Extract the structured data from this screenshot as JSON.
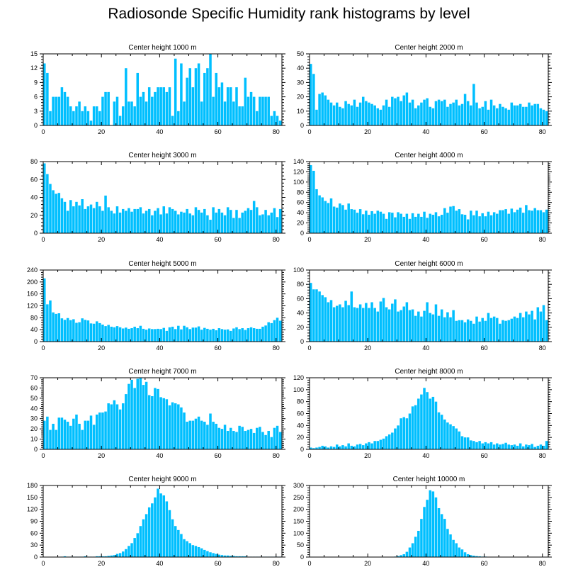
{
  "title": "Radiosonde Specific Humidity rank histograms by level",
  "colors": {
    "bar": "#00bfff",
    "axis": "#000000",
    "background": "#ffffff"
  },
  "chart_data": [
    {
      "type": "bar",
      "title": "Center height 1000 m",
      "xlabel": "",
      "ylabel": "",
      "xlim": [
        0,
        82
      ],
      "ylim": [
        0,
        15
      ],
      "xticks": [
        0,
        20,
        40,
        60,
        80
      ],
      "yticks": [
        0,
        3,
        6,
        9,
        12,
        15
      ],
      "values": [
        13,
        11,
        3,
        6,
        6,
        6,
        8,
        7,
        6,
        4,
        3,
        4,
        5,
        3,
        4,
        3,
        1,
        4,
        4,
        3,
        6,
        7,
        7,
        0,
        5,
        6,
        2,
        4,
        12,
        5,
        5,
        4,
        11,
        6,
        7,
        5,
        8,
        6,
        7,
        8,
        8,
        8,
        7,
        8,
        2,
        14,
        3,
        13,
        5,
        10,
        12,
        8,
        12,
        13,
        5,
        11,
        12,
        15,
        6,
        11,
        8,
        9,
        5,
        8,
        8,
        5,
        8,
        4,
        4,
        10,
        6,
        7,
        6,
        3,
        6,
        6,
        6,
        6,
        2,
        3,
        2,
        1
      ]
    },
    {
      "type": "bar",
      "title": "Center height 2000 m",
      "xlabel": "",
      "ylabel": "",
      "xlim": [
        0,
        82
      ],
      "ylim": [
        0,
        50
      ],
      "xticks": [
        0,
        20,
        40,
        60,
        80
      ],
      "yticks": [
        0,
        10,
        20,
        30,
        40,
        50
      ],
      "values": [
        43,
        36,
        11,
        22,
        23,
        21,
        18,
        16,
        14,
        16,
        13,
        12,
        17,
        15,
        14,
        18,
        13,
        16,
        20,
        17,
        16,
        15,
        14,
        12,
        11,
        14,
        18,
        13,
        20,
        19,
        20,
        17,
        21,
        23,
        16,
        18,
        12,
        14,
        16,
        18,
        19,
        13,
        12,
        17,
        18,
        17,
        18,
        13,
        15,
        16,
        18,
        14,
        15,
        22,
        17,
        14,
        29,
        16,
        12,
        13,
        17,
        11,
        18,
        14,
        12,
        15,
        13,
        12,
        11,
        16,
        14,
        14,
        15,
        13,
        13,
        16,
        14,
        15,
        15,
        12,
        11,
        10
      ]
    },
    {
      "type": "bar",
      "title": "Center height 3000 m",
      "xlabel": "",
      "ylabel": "",
      "xlim": [
        0,
        82
      ],
      "ylim": [
        0,
        80
      ],
      "xticks": [
        0,
        20,
        40,
        60,
        80
      ],
      "yticks": [
        0,
        20,
        40,
        60,
        80
      ],
      "values": [
        78,
        66,
        55,
        48,
        44,
        45,
        39,
        35,
        25,
        37,
        30,
        35,
        31,
        38,
        27,
        30,
        32,
        28,
        35,
        30,
        25,
        42,
        29,
        25,
        22,
        30,
        23,
        27,
        25,
        28,
        24,
        27,
        27,
        29,
        22,
        25,
        27,
        20,
        25,
        28,
        21,
        30,
        22,
        29,
        27,
        25,
        21,
        24,
        23,
        27,
        22,
        20,
        29,
        26,
        23,
        27,
        20,
        15,
        29,
        23,
        27,
        23,
        20,
        29,
        26,
        17,
        26,
        17,
        23,
        25,
        28,
        26,
        36,
        29,
        20,
        21,
        26,
        20,
        23,
        28,
        18,
        27
      ]
    },
    {
      "type": "bar",
      "title": "Center height 4000 m",
      "xlabel": "",
      "ylabel": "",
      "xlim": [
        0,
        82
      ],
      "ylim": [
        0,
        140
      ],
      "xticks": [
        0,
        20,
        40,
        60,
        80
      ],
      "yticks": [
        0,
        20,
        40,
        60,
        80,
        100,
        120,
        140
      ],
      "values": [
        133,
        122,
        86,
        74,
        70,
        63,
        59,
        68,
        52,
        50,
        58,
        55,
        46,
        58,
        47,
        46,
        40,
        47,
        37,
        44,
        36,
        43,
        38,
        44,
        42,
        38,
        28,
        41,
        40,
        31,
        41,
        38,
        32,
        38,
        28,
        39,
        32,
        38,
        32,
        42,
        30,
        38,
        36,
        41,
        33,
        36,
        49,
        40,
        52,
        53,
        44,
        47,
        37,
        36,
        27,
        44,
        35,
        44,
        33,
        39,
        33,
        42,
        35,
        41,
        38,
        45,
        45,
        47,
        38,
        48,
        41,
        46,
        50,
        40,
        55,
        45,
        44,
        49,
        45,
        45,
        41,
        46
      ]
    },
    {
      "type": "bar",
      "title": "Center height 5000 m",
      "xlabel": "",
      "ylabel": "",
      "xlim": [
        0,
        82
      ],
      "ylim": [
        0,
        240
      ],
      "xticks": [
        0,
        20,
        40,
        60,
        80
      ],
      "yticks": [
        0,
        40,
        80,
        120,
        160,
        200,
        240
      ],
      "values": [
        212,
        125,
        138,
        98,
        93,
        95,
        78,
        73,
        79,
        72,
        75,
        63,
        65,
        78,
        73,
        71,
        61,
        60,
        68,
        62,
        57,
        52,
        56,
        50,
        48,
        52,
        48,
        44,
        47,
        43,
        45,
        50,
        45,
        53,
        43,
        40,
        44,
        42,
        42,
        43,
        42,
        46,
        36,
        48,
        50,
        42,
        53,
        41,
        53,
        48,
        42,
        47,
        47,
        51,
        40,
        46,
        43,
        40,
        43,
        38,
        45,
        42,
        40,
        41,
        36,
        44,
        48,
        42,
        45,
        39,
        45,
        48,
        45,
        43,
        43,
        50,
        54,
        65,
        62,
        72,
        80,
        70
      ]
    },
    {
      "type": "bar",
      "title": "Center height 6000 m",
      "xlabel": "",
      "ylabel": "",
      "xlim": [
        0,
        82
      ],
      "ylim": [
        0,
        100
      ],
      "xticks": [
        0,
        20,
        40,
        60,
        80
      ],
      "yticks": [
        0,
        20,
        40,
        60,
        80,
        100
      ],
      "values": [
        82,
        73,
        73,
        70,
        65,
        62,
        55,
        58,
        48,
        50,
        52,
        48,
        57,
        51,
        70,
        48,
        47,
        52,
        47,
        54,
        47,
        55,
        47,
        42,
        56,
        61,
        48,
        45,
        53,
        59,
        42,
        44,
        49,
        55,
        44,
        45,
        36,
        42,
        35,
        43,
        55,
        40,
        38,
        52,
        36,
        45,
        34,
        41,
        34,
        44,
        29,
        30,
        30,
        27,
        31,
        29,
        25,
        35,
        28,
        33,
        29,
        40,
        33,
        35,
        33,
        25,
        30,
        29,
        30,
        32,
        35,
        33,
        40,
        34,
        42,
        38,
        43,
        31,
        48,
        42,
        51,
        30
      ]
    },
    {
      "type": "bar",
      "title": "Center height 7000 m",
      "xlabel": "",
      "ylabel": "",
      "xlim": [
        0,
        82
      ],
      "ylim": [
        0,
        70
      ],
      "xticks": [
        0,
        20,
        40,
        60,
        80
      ],
      "yticks": [
        0,
        10,
        20,
        30,
        40,
        50,
        60,
        70
      ],
      "values": [
        28,
        32,
        19,
        25,
        19,
        31,
        31,
        29,
        27,
        23,
        30,
        34,
        25,
        19,
        28,
        28,
        33,
        24,
        34,
        36,
        36,
        37,
        45,
        44,
        48,
        44,
        39,
        45,
        54,
        64,
        68,
        60,
        69,
        70,
        63,
        66,
        53,
        52,
        60,
        59,
        51,
        50,
        49,
        43,
        46,
        45,
        44,
        41,
        36,
        27,
        28,
        28,
        30,
        32,
        28,
        27,
        24,
        35,
        27,
        25,
        21,
        20,
        24,
        18,
        21,
        18,
        17,
        23,
        22,
        18,
        19,
        20,
        16,
        21,
        22,
        17,
        14,
        18,
        12,
        21,
        23,
        17
      ]
    },
    {
      "type": "bar",
      "title": "Center height 8000 m",
      "xlabel": "",
      "ylabel": "",
      "xlim": [
        0,
        82
      ],
      "ylim": [
        0,
        120
      ],
      "xticks": [
        0,
        20,
        40,
        60,
        80
      ],
      "yticks": [
        0,
        20,
        40,
        60,
        80,
        100,
        120
      ],
      "values": [
        3,
        2,
        3,
        4,
        6,
        5,
        3,
        5,
        4,
        8,
        5,
        7,
        5,
        10,
        6,
        5,
        8,
        9,
        7,
        10,
        12,
        10,
        14,
        14,
        16,
        18,
        22,
        25,
        28,
        35,
        40,
        52,
        54,
        52,
        60,
        72,
        74,
        85,
        92,
        103,
        96,
        85,
        88,
        80,
        62,
        58,
        50,
        45,
        42,
        39,
        35,
        30,
        22,
        20,
        20,
        15,
        14,
        12,
        14,
        10,
        12,
        10,
        12,
        8,
        10,
        8,
        9,
        11,
        8,
        7,
        8,
        6,
        10,
        5,
        8,
        7,
        9,
        4,
        6,
        8,
        6,
        14
      ]
    },
    {
      "type": "bar",
      "title": "Center height 9000 m",
      "xlabel": "",
      "ylabel": "",
      "xlim": [
        0,
        82
      ],
      "ylim": [
        0,
        180
      ],
      "xticks": [
        0,
        20,
        40,
        60,
        80
      ],
      "yticks": [
        0,
        30,
        60,
        90,
        120,
        150,
        180
      ],
      "values": [
        0,
        0,
        0,
        0,
        0,
        0,
        1,
        2,
        1,
        1,
        1,
        1,
        1,
        1,
        2,
        1,
        1,
        1,
        2,
        2,
        2,
        2,
        3,
        4,
        5,
        8,
        10,
        14,
        20,
        28,
        35,
        48,
        60,
        78,
        95,
        108,
        125,
        135,
        150,
        172,
        160,
        155,
        140,
        118,
        95,
        78,
        68,
        58,
        45,
        40,
        35,
        30,
        28,
        25,
        22,
        18,
        15,
        12,
        10,
        8,
        6,
        5,
        4,
        4,
        3,
        3,
        2,
        2,
        2,
        2,
        1,
        1,
        1,
        1,
        1,
        1,
        1,
        1,
        1,
        1,
        1,
        1
      ]
    },
    {
      "type": "bar",
      "title": "Center height 10000 m",
      "xlabel": "",
      "ylabel": "",
      "xlim": [
        0,
        82
      ],
      "ylim": [
        0,
        300
      ],
      "xticks": [
        0,
        20,
        40,
        60,
        80
      ],
      "yticks": [
        0,
        50,
        100,
        150,
        200,
        250,
        300
      ],
      "values": [
        0,
        0,
        0,
        0,
        0,
        0,
        0,
        0,
        0,
        0,
        0,
        0,
        0,
        0,
        0,
        0,
        0,
        0,
        0,
        0,
        0,
        0,
        0,
        0,
        0,
        0,
        0,
        0,
        1,
        2,
        4,
        8,
        12,
        22,
        40,
        58,
        85,
        110,
        160,
        210,
        240,
        280,
        275,
        250,
        205,
        180,
        160,
        118,
        95,
        72,
        58,
        40,
        32,
        20,
        12,
        8,
        6,
        4,
        3,
        2,
        2,
        1,
        1,
        1,
        1,
        1,
        1,
        1,
        1,
        1,
        1,
        1,
        0,
        0,
        0,
        0,
        0,
        0,
        0,
        0,
        0,
        0
      ]
    }
  ]
}
